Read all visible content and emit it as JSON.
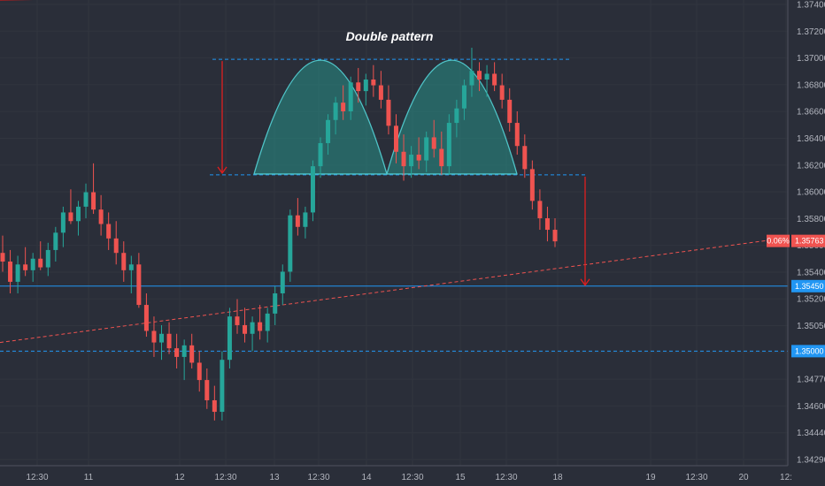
{
  "chart_data": {
    "type": "candlestick",
    "title": "Double pattern",
    "ylim": [
      1.3425,
      1.374
    ],
    "y_ticks": [
      "1.37400",
      "1.37200",
      "1.37000",
      "1.36800",
      "1.36600",
      "1.36400",
      "1.36200",
      "1.36000",
      "1.35800",
      "1.35600",
      "1.35400",
      "1.35200",
      "1.35050",
      "1.34900",
      "1.34770",
      "1.34600",
      "1.34440",
      "1.34290"
    ],
    "x_ticks": [
      "12:30",
      "11",
      "12",
      "12:30",
      "13",
      "12:30",
      "14",
      "12:30",
      "15",
      "12:30",
      "18",
      "19",
      "12:30",
      "20",
      "12:"
    ],
    "current_price": {
      "value": 1.35763,
      "label": "1.35763",
      "change": "0.06%",
      "color": "#f05350"
    },
    "levels": [
      {
        "value": 1.3545,
        "label": "1.35450",
        "style": "solid",
        "color": "#2196f3"
      },
      {
        "value": 1.35,
        "label": "1.35000",
        "style": "dashed",
        "color": "#2196f3"
      }
    ],
    "neckline": 1.3622,
    "top_line": 1.3702,
    "colors": {
      "up": "#26a69a",
      "down": "#ef5350",
      "arrow": "#e01e1e",
      "fill": "#26a69a",
      "curve": "#4fc3c7"
    },
    "candles": [
      [
        1.3568,
        1.358,
        1.3555,
        1.3562
      ],
      [
        1.3562,
        1.357,
        1.354,
        1.3548
      ],
      [
        1.3548,
        1.3566,
        1.354,
        1.356
      ],
      [
        1.356,
        1.3572,
        1.3552,
        1.3556
      ],
      [
        1.3556,
        1.3568,
        1.3548,
        1.3564
      ],
      [
        1.3564,
        1.3576,
        1.3556,
        1.3558
      ],
      [
        1.3558,
        1.3575,
        1.3552,
        1.357
      ],
      [
        1.357,
        1.3586,
        1.3562,
        1.3582
      ],
      [
        1.3582,
        1.36,
        1.3572,
        1.3596
      ],
      [
        1.3596,
        1.3612,
        1.3588,
        1.359
      ],
      [
        1.359,
        1.3604,
        1.358,
        1.36
      ],
      [
        1.36,
        1.3616,
        1.3592,
        1.361
      ],
      [
        1.361,
        1.363,
        1.3595,
        1.3598
      ],
      [
        1.3598,
        1.3608,
        1.358,
        1.3588
      ],
      [
        1.3588,
        1.3596,
        1.357,
        1.3578
      ],
      [
        1.3578,
        1.359,
        1.356,
        1.3568
      ],
      [
        1.3568,
        1.3576,
        1.3548,
        1.3556
      ],
      [
        1.3556,
        1.3566,
        1.354,
        1.356
      ],
      [
        1.356,
        1.3568,
        1.353,
        1.3532
      ],
      [
        1.3532,
        1.354,
        1.351,
        1.3514
      ],
      [
        1.3514,
        1.3524,
        1.3496,
        1.3506
      ],
      [
        1.3506,
        1.3518,
        1.3494,
        1.3512
      ],
      [
        1.3512,
        1.352,
        1.3498,
        1.3502
      ],
      [
        1.3502,
        1.3512,
        1.3488,
        1.3496
      ],
      [
        1.3496,
        1.3508,
        1.348,
        1.3504
      ],
      [
        1.3504,
        1.3512,
        1.3488,
        1.3492
      ],
      [
        1.3492,
        1.35,
        1.3472,
        1.348
      ],
      [
        1.348,
        1.3488,
        1.346,
        1.3466
      ],
      [
        1.3466,
        1.3476,
        1.3452,
        1.3458
      ],
      [
        1.3458,
        1.35,
        1.3452,
        1.3494
      ],
      [
        1.3494,
        1.353,
        1.3488,
        1.3524
      ],
      [
        1.3524,
        1.3536,
        1.3512,
        1.3518
      ],
      [
        1.3518,
        1.353,
        1.3506,
        1.3512
      ],
      [
        1.3512,
        1.3524,
        1.35,
        1.352
      ],
      [
        1.352,
        1.3532,
        1.3508,
        1.3514
      ],
      [
        1.3514,
        1.353,
        1.3506,
        1.3526
      ],
      [
        1.3526,
        1.3545,
        1.3518,
        1.354
      ],
      [
        1.354,
        1.356,
        1.3532,
        1.3555
      ],
      [
        1.3555,
        1.3598,
        1.3548,
        1.3594
      ],
      [
        1.3594,
        1.3606,
        1.358,
        1.3586
      ],
      [
        1.3586,
        1.36,
        1.3578,
        1.3596
      ],
      [
        1.3596,
        1.3632,
        1.359,
        1.3628
      ],
      [
        1.3628,
        1.3648,
        1.362,
        1.3644
      ],
      [
        1.3644,
        1.3664,
        1.3636,
        1.366
      ],
      [
        1.366,
        1.3676,
        1.365,
        1.3672
      ],
      [
        1.3672,
        1.3684,
        1.366,
        1.3666
      ],
      [
        1.3666,
        1.369,
        1.366,
        1.3686
      ],
      [
        1.3686,
        1.3696,
        1.3672,
        1.368
      ],
      [
        1.368,
        1.3692,
        1.367,
        1.3688
      ],
      [
        1.3688,
        1.3698,
        1.3676,
        1.3684
      ],
      [
        1.3684,
        1.3694,
        1.3668,
        1.3674
      ],
      [
        1.3674,
        1.3684,
        1.365,
        1.3656
      ],
      [
        1.3656,
        1.3664,
        1.363,
        1.3638
      ],
      [
        1.3638,
        1.365,
        1.3618,
        1.3628
      ],
      [
        1.3628,
        1.3642,
        1.362,
        1.3636
      ],
      [
        1.3636,
        1.3648,
        1.3626,
        1.3632
      ],
      [
        1.3632,
        1.3652,
        1.3624,
        1.3648
      ],
      [
        1.3648,
        1.366,
        1.3634,
        1.364
      ],
      [
        1.364,
        1.3652,
        1.3622,
        1.3628
      ],
      [
        1.3628,
        1.3664,
        1.3622,
        1.3658
      ],
      [
        1.3658,
        1.3674,
        1.3648,
        1.3668
      ],
      [
        1.3668,
        1.3688,
        1.366,
        1.3684
      ],
      [
        1.3684,
        1.371,
        1.3676,
        1.3694
      ],
      [
        1.3694,
        1.37,
        1.368,
        1.3688
      ],
      [
        1.3688,
        1.3698,
        1.3676,
        1.3692
      ],
      [
        1.3692,
        1.37,
        1.368,
        1.3684
      ],
      [
        1.3684,
        1.3692,
        1.3668,
        1.3674
      ],
      [
        1.3674,
        1.3682,
        1.3652,
        1.3658
      ],
      [
        1.3658,
        1.3666,
        1.3636,
        1.3642
      ],
      [
        1.3642,
        1.365,
        1.362,
        1.3626
      ],
      [
        1.3626,
        1.3632,
        1.3598,
        1.3604
      ],
      [
        1.3604,
        1.3612,
        1.3584,
        1.3592
      ],
      [
        1.3592,
        1.36,
        1.3576,
        1.3584
      ],
      [
        1.3584,
        1.3592,
        1.3572,
        1.3576
      ]
    ]
  }
}
